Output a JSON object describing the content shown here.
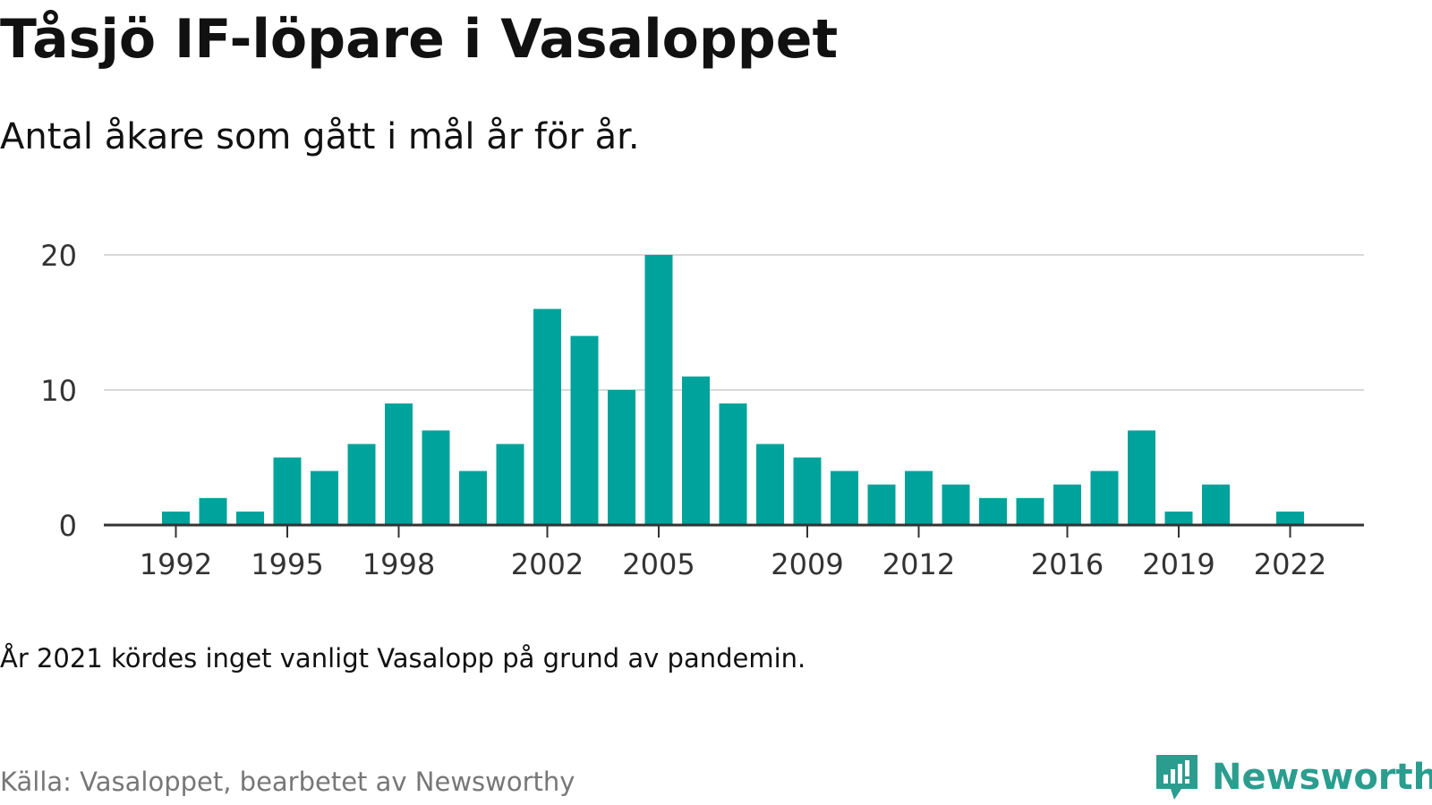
{
  "title": "Tåsjö IF-löpare i Vasaloppet",
  "subtitle": "Antal åkare som gått i mål år för år.",
  "note": "År 2021 kördes inget vanligt Vasalopp på grund av pandemin.",
  "source": "Källa: Vasaloppet, bearbetet av Newsworthy",
  "logo": {
    "text": "Newsworthy",
    "icon": "newsworthy-logo-icon",
    "color": "#2a9d8f"
  },
  "chart_data": {
    "type": "bar",
    "title": "Tåsjö IF-löpare i Vasaloppet",
    "subtitle": "Antal åkare som gått i mål år för år.",
    "xlabel": "",
    "ylabel": "",
    "categories": [
      1992,
      1993,
      1994,
      1995,
      1996,
      1997,
      1998,
      1999,
      2000,
      2001,
      2002,
      2003,
      2004,
      2005,
      2006,
      2007,
      2008,
      2009,
      2010,
      2011,
      2012,
      2013,
      2014,
      2015,
      2016,
      2017,
      2018,
      2019,
      2020,
      2021,
      2022
    ],
    "values": [
      1,
      2,
      1,
      5,
      4,
      6,
      9,
      7,
      4,
      6,
      16,
      14,
      10,
      20,
      11,
      9,
      6,
      5,
      4,
      3,
      4,
      3,
      2,
      2,
      3,
      4,
      7,
      1,
      3,
      null,
      1
    ],
    "x_ticks": [
      "1992",
      "1995",
      "1998",
      "2002",
      "2005",
      "2009",
      "2012",
      "2016",
      "2019",
      "2022"
    ],
    "y_ticks": [
      "0",
      "10",
      "20"
    ],
    "ylim": [
      0,
      20
    ],
    "grid": true,
    "legend": "none",
    "bar_color": "#00a39b",
    "grid_color": "#d9d9d9",
    "axis_color": "#333333"
  }
}
